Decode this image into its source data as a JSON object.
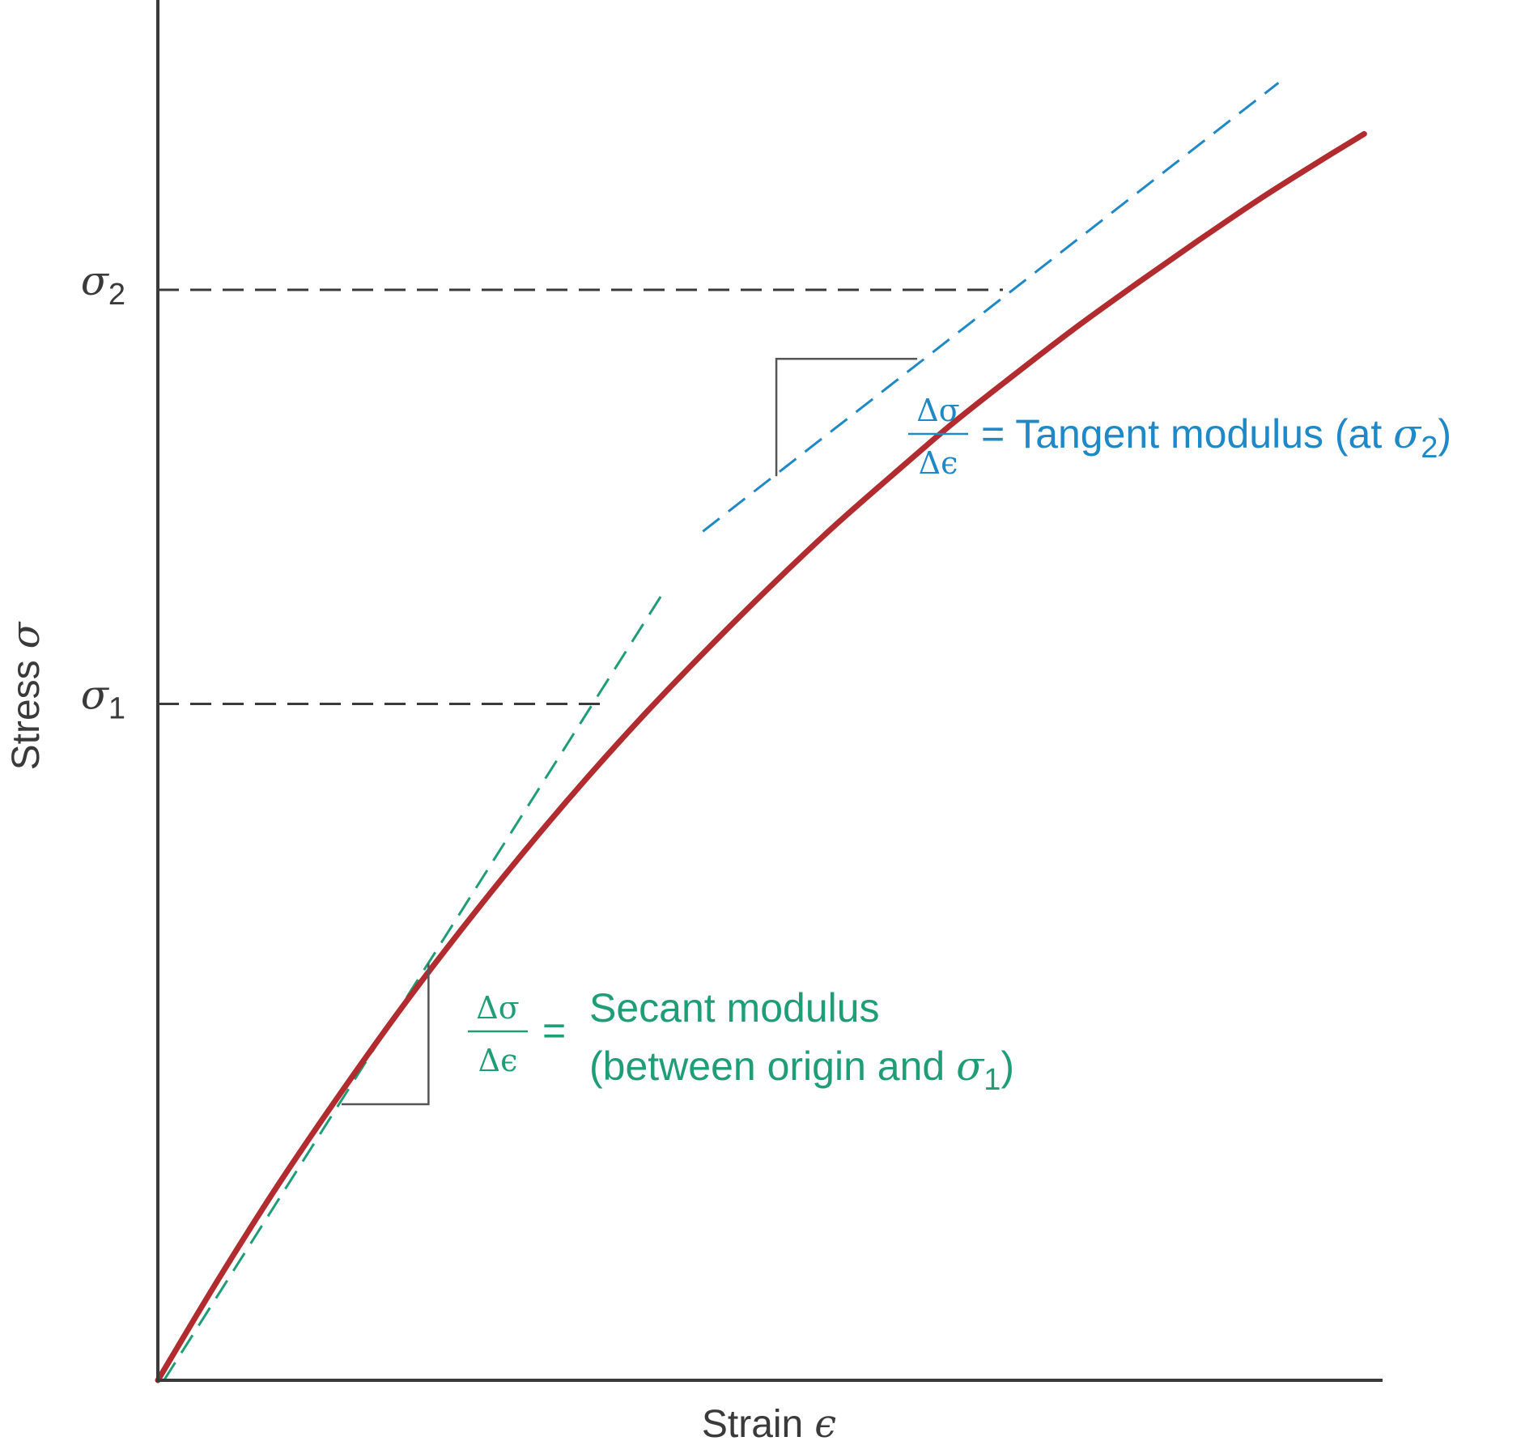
{
  "chart_data": {
    "type": "line",
    "xlabel": {
      "text": "Strain",
      "symbol": "ϵ"
    },
    "ylabel": {
      "text": "Stress",
      "symbol": "σ"
    },
    "yticks": [
      {
        "symbol": "σ",
        "sub": "1",
        "value": 0.49
      },
      {
        "symbol": "σ",
        "sub": "2",
        "value": 0.79
      }
    ],
    "xlim": [
      0,
      1
    ],
    "ylim": [
      0,
      1
    ],
    "series": [
      {
        "role": "stress-strain-curve",
        "color": "#b22b2e",
        "x": [
          0,
          0.05,
          0.1,
          0.15,
          0.2,
          0.25,
          0.3,
          0.35,
          0.4,
          0.45,
          0.5,
          0.55,
          0.6,
          0.65,
          0.7,
          0.75,
          0.8,
          0.85,
          0.9,
          0.95,
          0.985
        ],
        "y": [
          0,
          0.074,
          0.144,
          0.209,
          0.271,
          0.329,
          0.384,
          0.436,
          0.485,
          0.531,
          0.575,
          0.617,
          0.656,
          0.694,
          0.729,
          0.763,
          0.795,
          0.826,
          0.856,
          0.884,
          0.903
        ]
      },
      {
        "role": "secant-line",
        "color": "#1f9e76",
        "dashed": true,
        "x": [
          0.005,
          0.415
        ],
        "y": [
          0.0,
          0.574
        ]
      },
      {
        "role": "tangent-line",
        "color": "#1f88c7",
        "dashed": true,
        "x": [
          0.445,
          0.915
        ],
        "y": [
          0.615,
          0.94
        ]
      }
    ],
    "guides": [
      {
        "role": "sigma1-dashed",
        "y": 0.49,
        "x_end": 0.365,
        "color": "#3a3a3a"
      },
      {
        "role": "sigma2-dashed",
        "y": 0.79,
        "x_end": 0.69,
        "color": "#3a3a3a"
      }
    ],
    "slope_triangles": [
      {
        "role": "secant-triangle",
        "x_left": 0.15,
        "x_right": 0.221,
        "y_bottom": 0.2,
        "y_top": 0.302
      },
      {
        "role": "tangent-triangle",
        "x_left": 0.505,
        "x_right": 0.62,
        "y_bottom": 0.655,
        "y_top": 0.74
      }
    ],
    "annotations": {
      "tangent": {
        "color": "#1f88c7",
        "frac_num": "Δσ",
        "frac_den": "Δϵ",
        "text_pre": "= Tangent modulus (at ",
        "symbol": "σ",
        "sub": "2",
        "text_post": ")"
      },
      "secant": {
        "color": "#1f9e76",
        "frac_num": "Δσ",
        "frac_den": "Δϵ",
        "line1": "Secant modulus",
        "line2_pre": "(between origin and ",
        "symbol": "σ",
        "sub": "1",
        "line2_post": ")"
      }
    },
    "grid": false,
    "legend": "none"
  }
}
